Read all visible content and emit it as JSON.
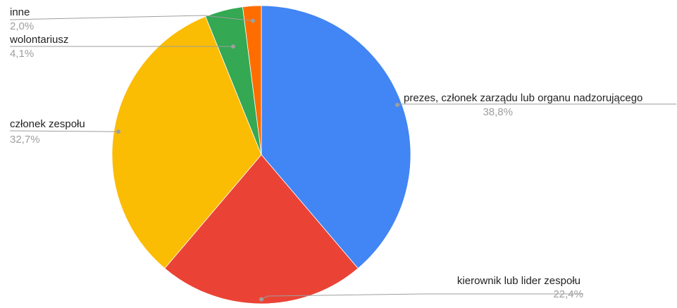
{
  "chart_data": {
    "type": "pie",
    "title": "",
    "start_angle_deg": 0,
    "direction": "clockwise",
    "slices": [
      {
        "label": "prezes, członek zarządu lub organu nadzorującego",
        "value": 38.8,
        "value_label": "38,8%",
        "color": "#4285f4"
      },
      {
        "label": "kierownik lub lider zespołu",
        "value": 22.4,
        "value_label": "22,4%",
        "color": "#ea4335"
      },
      {
        "label": "członek zespołu",
        "value": 32.7,
        "value_label": "32,7%",
        "color": "#fbbc04"
      },
      {
        "label": "wolontariusz",
        "value": 4.1,
        "value_label": "4,1%",
        "color": "#34a853"
      },
      {
        "label": "inne",
        "value": 2.0,
        "value_label": "2,0%",
        "color": "#ff6d01"
      }
    ],
    "legend": "none",
    "label_style": "leader lines with name and percentage"
  }
}
